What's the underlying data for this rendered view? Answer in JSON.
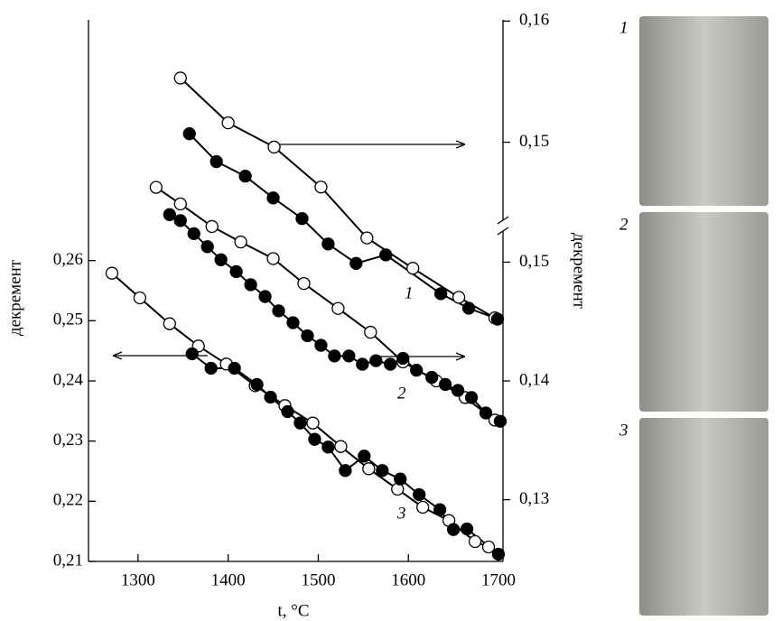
{
  "chart_data": {
    "type": "scatter",
    "y_label": "декремент",
    "y2_label": "декремент",
    "x_label": "t, °C",
    "xlim": [
      1245,
      1705
    ],
    "xticks": [
      1300,
      1400,
      1500,
      1600,
      1700
    ],
    "ylim": [
      0.21,
      0.3
    ],
    "yticks": [
      {
        "value": 0.21,
        "label": "0,21"
      },
      {
        "value": 0.22,
        "label": "0,22"
      },
      {
        "value": 0.23,
        "label": "0,23"
      },
      {
        "value": 0.24,
        "label": "0,24"
      },
      {
        "value": 0.25,
        "label": "0,25"
      },
      {
        "value": 0.26,
        "label": "0,26"
      }
    ],
    "y2lim": [
      0.1248,
      0.1704
    ],
    "y2ticks": [
      {
        "value": 0.13,
        "label": "0,13"
      },
      {
        "value": 0.14,
        "label": "0,14"
      },
      {
        "value": 0.15,
        "label": "0,15"
      }
    ],
    "y3lim": [
      0.1154,
      0.1601
    ],
    "y3ticks": [
      {
        "value": 0.15,
        "label": "0,15"
      },
      {
        "value": 0.16,
        "label": "0,16"
      }
    ],
    "curve_labels": [
      "1",
      "2",
      "3"
    ],
    "series": [
      {
        "marker": "open",
        "axis": "y3",
        "color": "#000",
        "x": [
          1347,
          1400,
          1451,
          1503,
          1554,
          1605,
          1656,
          1696
        ],
        "values": [
          0.1553,
          0.1516,
          0.1496,
          0.1463,
          0.1421,
          0.1396,
          0.1372,
          0.1355
        ]
      },
      {
        "marker": "filled",
        "axis": "y3",
        "color": "#000",
        "x": [
          1357,
          1387,
          1419,
          1450,
          1482,
          1511,
          1542,
          1575,
          1636,
          1667,
          1699
        ],
        "values": [
          0.1507,
          0.1484,
          0.1472,
          0.1454,
          0.1437,
          0.1416,
          0.14,
          0.1407,
          0.1375,
          0.1363,
          0.1354
        ]
      },
      {
        "marker": "open",
        "axis": "y2",
        "color": "#000",
        "x": [
          1320,
          1347,
          1382,
          1414,
          1450,
          1484,
          1522,
          1558,
          1594,
          1631,
          1663,
          1696
        ],
        "values": [
          0.1563,
          0.1549,
          0.153,
          0.1517,
          0.1503,
          0.1482,
          0.1461,
          0.1441,
          0.1416,
          0.14,
          0.1386,
          0.1367
        ]
      },
      {
        "marker": "filled",
        "axis": "y2",
        "color": "#000",
        "x": [
          1335,
          1347,
          1362,
          1377,
          1392,
          1409,
          1425,
          1441,
          1456,
          1472,
          1488,
          1503,
          1518,
          1534,
          1549,
          1564,
          1580,
          1594,
          1609,
          1626,
          1641,
          1655,
          1670,
          1686,
          1702
        ],
        "values": [
          0.154,
          0.1535,
          0.1524,
          0.1513,
          0.1502,
          0.1492,
          0.1481,
          0.1471,
          0.1459,
          0.1449,
          0.1438,
          0.143,
          0.1421,
          0.1421,
          0.1414,
          0.1417,
          0.1414,
          0.1419,
          0.1409,
          0.1403,
          0.1397,
          0.1392,
          0.1386,
          0.1373,
          0.1366
        ]
      },
      {
        "marker": "open",
        "axis": "y",
        "color": "#000",
        "x": [
          1271,
          1302,
          1335,
          1367,
          1398,
          1430,
          1463,
          1494,
          1525,
          1556,
          1588,
          1616,
          1645,
          1674,
          1689
        ],
        "values": [
          0.2579,
          0.2538,
          0.2495,
          0.2458,
          0.2428,
          0.2392,
          0.2359,
          0.233,
          0.2291,
          0.2254,
          0.222,
          0.219,
          0.2168,
          0.2133,
          0.2124
        ]
      },
      {
        "marker": "filled",
        "axis": "y",
        "color": "#000",
        "x": [
          1360,
          1381,
          1407,
          1432,
          1447,
          1466,
          1480,
          1496,
          1511,
          1530,
          1551,
          1571,
          1591,
          1612,
          1635,
          1650,
          1665,
          1700
        ],
        "values": [
          0.2445,
          0.2421,
          0.2421,
          0.2394,
          0.2373,
          0.2349,
          0.233,
          0.2303,
          0.229,
          0.2251,
          0.2275,
          0.2251,
          0.2237,
          0.2211,
          0.2186,
          0.2153,
          0.2154,
          0.2112
        ]
      }
    ],
    "photos": [
      {
        "label": "1"
      },
      {
        "label": "2"
      },
      {
        "label": "3"
      }
    ]
  }
}
